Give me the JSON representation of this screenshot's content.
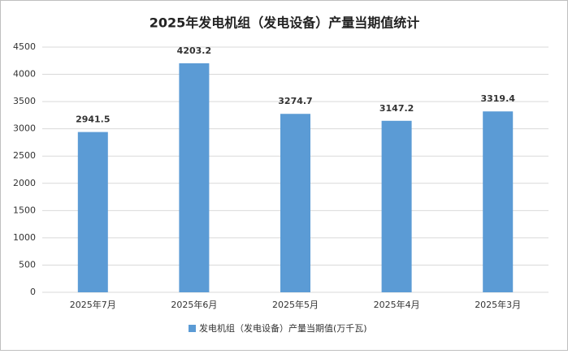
{
  "chart_data": {
    "type": "bar",
    "title": "2025年发电机组（发电设备）产量当期值统计",
    "categories": [
      "2025年7月",
      "2025年6月",
      "2025年5月",
      "2025年4月",
      "2025年3月"
    ],
    "series": [
      {
        "name": "发电机组（发电设备）产量当期值(万千瓦)",
        "color": "#5b9bd5",
        "values": [
          2941.5,
          4203.2,
          3274.7,
          3147.2,
          3319.4
        ]
      }
    ],
    "ylim": [
      0,
      4500
    ],
    "yticks": [
      0,
      500,
      1000,
      1500,
      2000,
      2500,
      3000,
      3500,
      4000,
      4500
    ],
    "grid": true,
    "legend": "bottom"
  }
}
